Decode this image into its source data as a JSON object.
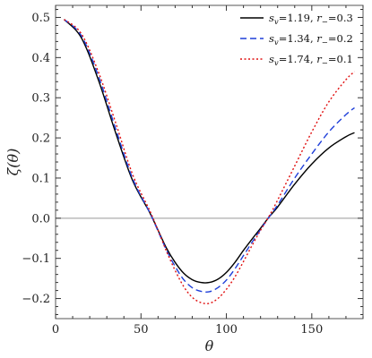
{
  "chart_data": {
    "type": "line",
    "title": "",
    "xlabel": "θ",
    "ylabel": "ζ(θ)",
    "xlim": [
      0,
      180
    ],
    "ylim": [
      -0.25,
      0.53
    ],
    "xticks": [
      0,
      50,
      100,
      150
    ],
    "yticks": [
      -0.2,
      -0.1,
      0.0,
      0.1,
      0.2,
      0.3,
      0.4,
      0.5
    ],
    "ytick_labels": [
      "−0.2",
      "−0.1",
      "0.0",
      "0.1",
      "0.2",
      "0.3",
      "0.4",
      "0.5"
    ],
    "grid": false,
    "reference_line": {
      "y": 0,
      "color": "#999999"
    },
    "legend_position": "top-right",
    "series": [
      {
        "name": "s_v=1.19, r_−=0.3",
        "s_label": "s",
        "s_sub": "v",
        "s_value": "=1.19,",
        "r_label": "r",
        "r_sub": "−",
        "r_value": "=0.3",
        "color": "#000000",
        "style": "solid",
        "x": [
          5,
          15,
          25,
          35,
          45,
          55,
          60,
          65,
          70,
          75,
          80,
          85,
          90,
          95,
          100,
          105,
          110,
          115,
          120,
          125,
          130,
          140,
          150,
          160,
          170,
          175
        ],
        "y": [
          0.495,
          0.45,
          0.345,
          0.215,
          0.095,
          0.015,
          -0.03,
          -0.075,
          -0.11,
          -0.137,
          -0.153,
          -0.16,
          -0.16,
          -0.152,
          -0.135,
          -0.11,
          -0.08,
          -0.052,
          -0.025,
          0.003,
          0.028,
          0.085,
          0.135,
          0.175,
          0.203,
          0.213
        ]
      },
      {
        "name": "s_v=1.34, r_−=0.2",
        "s_label": "s",
        "s_sub": "v",
        "s_value": "=1.34,",
        "r_label": "r",
        "r_sub": "−",
        "r_value": "=0.2",
        "color": "#1f3fd9",
        "style": "dashed",
        "x": [
          5,
          15,
          25,
          35,
          45,
          55,
          60,
          65,
          70,
          75,
          80,
          85,
          90,
          95,
          100,
          105,
          110,
          115,
          120,
          125,
          130,
          140,
          150,
          160,
          170,
          175
        ],
        "y": [
          0.495,
          0.455,
          0.355,
          0.225,
          0.1,
          0.015,
          -0.032,
          -0.08,
          -0.12,
          -0.153,
          -0.173,
          -0.182,
          -0.183,
          -0.173,
          -0.154,
          -0.126,
          -0.093,
          -0.06,
          -0.028,
          0.003,
          0.033,
          0.1,
          0.16,
          0.215,
          0.258,
          0.275
        ]
      },
      {
        "name": "s_v=1.74, r_−=0.1",
        "s_label": "s",
        "s_sub": "v",
        "s_value": "=1.74,",
        "r_label": "r",
        "r_sub": "−",
        "r_value": "=0.1",
        "color": "#e01010",
        "style": "dotted",
        "x": [
          5,
          15,
          25,
          35,
          45,
          55,
          60,
          65,
          70,
          75,
          80,
          85,
          90,
          95,
          100,
          105,
          110,
          115,
          120,
          125,
          130,
          140,
          150,
          160,
          170,
          175
        ],
        "y": [
          0.495,
          0.46,
          0.365,
          0.24,
          0.11,
          0.02,
          -0.03,
          -0.083,
          -0.13,
          -0.17,
          -0.197,
          -0.21,
          -0.212,
          -0.2,
          -0.177,
          -0.146,
          -0.108,
          -0.068,
          -0.03,
          0.005,
          0.045,
          0.13,
          0.215,
          0.29,
          0.345,
          0.365
        ]
      }
    ]
  }
}
